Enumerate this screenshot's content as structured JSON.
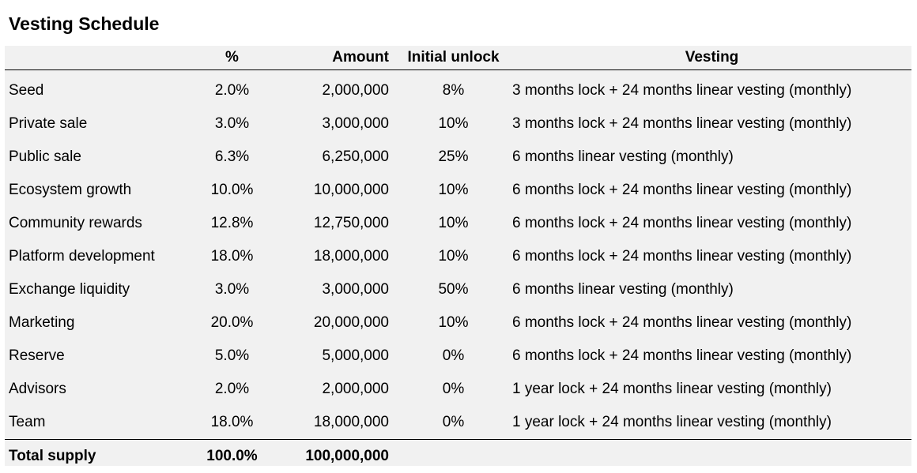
{
  "title": "Vesting Schedule",
  "headers": {
    "name": "",
    "pct": "%",
    "amount": "Amount",
    "unlock": "Initial unlock",
    "vesting": "Vesting"
  },
  "rows": [
    {
      "name": "Seed",
      "pct": "2.0%",
      "amount": "2,000,000",
      "unlock": "8%",
      "vesting": "3 months lock + 24 months linear vesting (monthly)"
    },
    {
      "name": "Private sale",
      "pct": "3.0%",
      "amount": "3,000,000",
      "unlock": "10%",
      "vesting": "3 months lock + 24 months linear vesting (monthly)"
    },
    {
      "name": "Public sale",
      "pct": "6.3%",
      "amount": "6,250,000",
      "unlock": "25%",
      "vesting": "6 months linear vesting (monthly)"
    },
    {
      "name": "Ecosystem growth",
      "pct": "10.0%",
      "amount": "10,000,000",
      "unlock": "10%",
      "vesting": "6 months lock + 24 months linear vesting (monthly)"
    },
    {
      "name": "Community rewards",
      "pct": "12.8%",
      "amount": "12,750,000",
      "unlock": "10%",
      "vesting": "6 months lock + 24 months linear vesting (monthly)"
    },
    {
      "name": "Platform development",
      "pct": "18.0%",
      "amount": "18,000,000",
      "unlock": "10%",
      "vesting": "6 months lock + 24 months linear vesting (monthly)"
    },
    {
      "name": "Exchange liquidity",
      "pct": "3.0%",
      "amount": "3,000,000",
      "unlock": "50%",
      "vesting": "6 months linear vesting (monthly)"
    },
    {
      "name": "Marketing",
      "pct": "20.0%",
      "amount": "20,000,000",
      "unlock": "10%",
      "vesting": "6 months lock + 24 months linear vesting (monthly)"
    },
    {
      "name": "Reserve",
      "pct": "5.0%",
      "amount": "5,000,000",
      "unlock": "0%",
      "vesting": "6 months lock + 24 months linear vesting (monthly)"
    },
    {
      "name": "Advisors",
      "pct": "2.0%",
      "amount": "2,000,000",
      "unlock": "0%",
      "vesting": "1 year lock + 24 months linear vesting (monthly)"
    },
    {
      "name": "Team",
      "pct": "18.0%",
      "amount": "18,000,000",
      "unlock": "0%",
      "vesting": "1 year lock + 24 months linear vesting (monthly)"
    }
  ],
  "total": {
    "name": "Total supply",
    "pct": "100.0%",
    "amount": "100,000,000"
  }
}
